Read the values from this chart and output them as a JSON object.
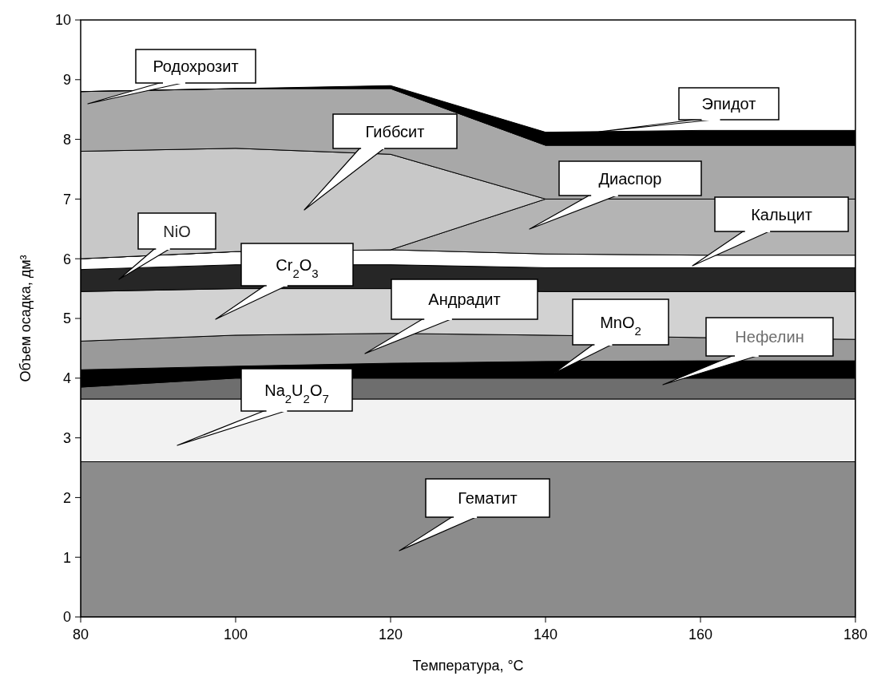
{
  "chart_data": {
    "type": "area",
    "stacked": true,
    "xlabel": "Температура, °C",
    "ylabel": "Объем осадка, дм³",
    "x": [
      80,
      100,
      120,
      140,
      160,
      180
    ],
    "xlim": [
      80,
      180
    ],
    "xticks": [
      80,
      100,
      120,
      140,
      160,
      180
    ],
    "ylim": [
      0,
      10
    ],
    "yticks": [
      0,
      1,
      2,
      3,
      4,
      5,
      6,
      7,
      8,
      9,
      10
    ],
    "series": [
      {
        "name": "Гематит",
        "color": "#8c8c8c",
        "values": [
          2.6,
          2.6,
          2.6,
          2.6,
          2.6,
          2.6
        ]
      },
      {
        "name": "Na$_{2}$U$_{2}$O$_{7}$",
        "color": "#f2f2f2",
        "values": [
          1.05,
          1.05,
          1.05,
          1.05,
          1.05,
          1.05
        ]
      },
      {
        "name": "Нефелин",
        "color": "#6e6e6e",
        "values": [
          0.2,
          0.35,
          0.35,
          0.35,
          0.35,
          0.35
        ]
      },
      {
        "name": "MnO$_{2}$",
        "color": "#000000",
        "values": [
          0.29,
          0.2,
          0.25,
          0.28,
          0.29,
          0.29
        ]
      },
      {
        "name": "Андрадит",
        "color": "#9a9a9a",
        "values": [
          0.48,
          0.52,
          0.5,
          0.44,
          0.39,
          0.36
        ]
      },
      {
        "name": "Cr$_{2}$O$_{3}$",
        "color": "#d2d2d2",
        "values": [
          0.83,
          0.78,
          0.75,
          0.73,
          0.77,
          0.8
        ]
      },
      {
        "name": "NiO",
        "color": "#262626",
        "values": [
          0.37,
          0.4,
          0.4,
          0.4,
          0.4,
          0.4
        ]
      },
      {
        "name": "Кальцит",
        "color": "#ffffff",
        "values": [
          0.18,
          0.22,
          0.25,
          0.23,
          0.21,
          0.21
        ]
      },
      {
        "name": "Диаспор",
        "color": "#b4b4b4",
        "values": [
          0,
          0,
          0,
          0.92,
          0.94,
          0.94
        ]
      },
      {
        "name": "Гиббсит",
        "color": "#c8c8c8",
        "values": [
          1.8,
          1.73,
          1.6,
          0,
          0,
          0
        ]
      },
      {
        "name": "Родохрозит",
        "color": "#a8a8a8",
        "values": [
          1.0,
          1.0,
          1.1,
          0.9,
          0.9,
          0.9
        ]
      },
      {
        "name": "Эпидот",
        "color": "#000000",
        "values": [
          0,
          0,
          0.05,
          0.22,
          0.25,
          0.25
        ]
      }
    ]
  }
}
